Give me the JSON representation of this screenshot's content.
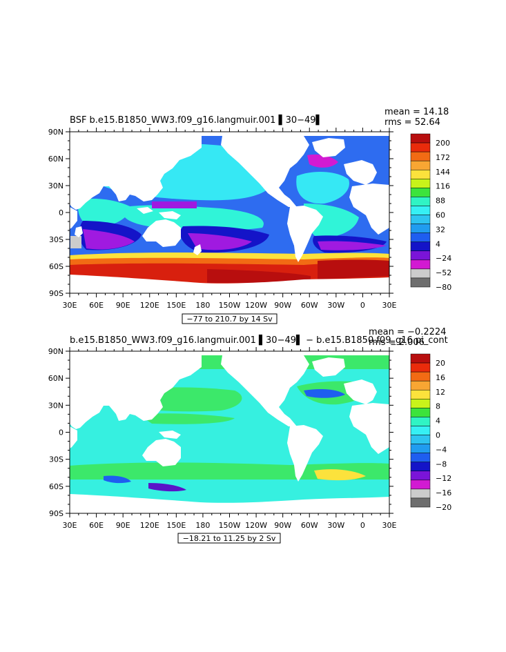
{
  "panels": [
    {
      "title": "BSF b.e15.B1850_WW3.f09_g16.langmuir.001 ▌30−49▌",
      "mean": "mean = 14.18",
      "rms": "rms = 52.64",
      "contour_info": "−77 to 210.7 by 14 Sv",
      "lat_ticks": [
        "90N",
        "60N",
        "30N",
        "0",
        "30S",
        "60S",
        "90S"
      ],
      "lon_ticks": [
        "30E",
        "60E",
        "90E",
        "120E",
        "150E",
        "180",
        "150W",
        "120W",
        "90W",
        "60W",
        "30W",
        "0",
        "30E"
      ],
      "colorbar": {
        "labels": [
          "200",
          "172",
          "144",
          "116",
          "88",
          "60",
          "32",
          "4",
          "−24",
          "−52",
          "−80"
        ],
        "colors": [
          "#b80e0e",
          "#ea2b0b",
          "#f26b14",
          "#f8a633",
          "#fce23c",
          "#c8f31a",
          "#3ce33c",
          "#30f4c4",
          "#36f0f4",
          "#2ec4f0",
          "#209cf0",
          "#1e5ef0",
          "#1414c8",
          "#7a14d8",
          "#d21ad2",
          "#cccccc",
          "#6e6e6e"
        ]
      }
    },
    {
      "title": "b.e15.B1850_WW3.f09_g16.langmuir.001 ▌30−49▌ − b.e15.B1850.f09_g16.pi_cont",
      "mean": "mean = −0.2224",
      "rms": "rms = 2.006",
      "contour_info": "−18.21 to 11.25 by 2 Sv",
      "lat_ticks": [
        "90N",
        "60N",
        "30N",
        "0",
        "30S",
        "60S",
        "90S"
      ],
      "lon_ticks": [
        "30E",
        "60E",
        "90E",
        "120E",
        "150E",
        "180",
        "150W",
        "120W",
        "90W",
        "60W",
        "30W",
        "0",
        "30E"
      ],
      "colorbar": {
        "labels": [
          "20",
          "16",
          "12",
          "8",
          "4",
          "0",
          "−4",
          "−8",
          "−12",
          "−16",
          "−20"
        ],
        "colors": [
          "#b80e0e",
          "#ea2b0b",
          "#f26b14",
          "#f8a633",
          "#fce23c",
          "#c8f31a",
          "#3ce33c",
          "#30f4c4",
          "#36f0f4",
          "#2ec4f0",
          "#209cf0",
          "#1e5ef0",
          "#1414c8",
          "#7a14d8",
          "#d21ad2",
          "#cccccc",
          "#6e6e6e"
        ]
      }
    }
  ],
  "map_colors": {
    "land": "#ffffff",
    "top_ocean": "#2e6cf0",
    "top_cyan": "#36e8f4",
    "top_cyan_light": "#30f4d8",
    "top_blue_dark": "#1414c8",
    "top_purple": "#a01ae0",
    "top_magenta": "#d21ad2",
    "top_gray": "#cccccc",
    "top_red": "#d8200e",
    "top_red_dark": "#b80e0e",
    "top_orange": "#f26b14",
    "top_yellow": "#fce23c",
    "bot_ocean": "#36f0e0",
    "bot_green": "#3ce86a",
    "bot_yellow": "#fce23c",
    "bot_blue": "#1e5ef0",
    "bot_purple": "#5a14c8"
  }
}
